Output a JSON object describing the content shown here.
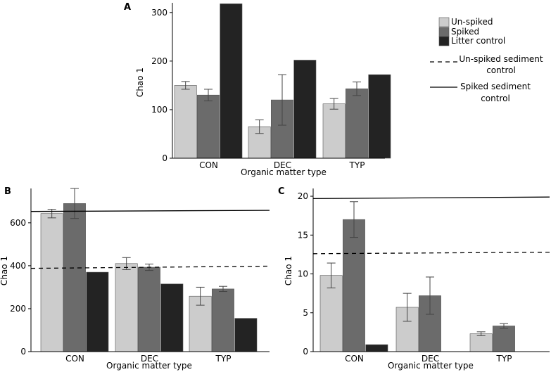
{
  "colors": {
    "unspiked": "#cccccc",
    "spiked": "#6b6b6b",
    "litter": "#232323",
    "errorbar": "#444444"
  },
  "legend": {
    "unspiked": "Un-spiked",
    "spiked": "Spiked",
    "litter": "Litter control",
    "unspiked_sed_line1": "Un-spiked sediment",
    "unspiked_sed_line2": "control",
    "spiked_sed_line1": "Spiked sediment",
    "spiked_sed_line2": "control"
  },
  "chart_data": [
    {
      "panel": "A",
      "type": "bar",
      "xlabel": "Organic matter type",
      "ylabel": "Chao 1",
      "ylim": [
        0,
        320
      ],
      "yticks": [
        0,
        100,
        200,
        300
      ],
      "categories": [
        "CON",
        "DEC",
        "TYP"
      ],
      "series": [
        {
          "name": "Un-spiked",
          "values": [
            150,
            65,
            112
          ],
          "errors": [
            8,
            14,
            11
          ]
        },
        {
          "name": "Spiked",
          "values": [
            130,
            120,
            143
          ],
          "errors": [
            12,
            52,
            14
          ]
        },
        {
          "name": "Litter control",
          "values": [
            318,
            202,
            172
          ],
          "errors": [
            null,
            null,
            null
          ]
        }
      ],
      "reference_lines": []
    },
    {
      "panel": "B",
      "type": "bar",
      "xlabel": "Organic matter type",
      "ylabel": "Chao 1",
      "ylim": [
        0,
        760
      ],
      "yticks": [
        0,
        200,
        400,
        600
      ],
      "categories": [
        "CON",
        "DEC",
        "TYP"
      ],
      "series": [
        {
          "name": "Un-spiked",
          "values": [
            643,
            410,
            258
          ],
          "errors": [
            20,
            28,
            42
          ]
        },
        {
          "name": "Spiked",
          "values": [
            690,
            393,
            292
          ],
          "errors": [
            70,
            15,
            12
          ]
        },
        {
          "name": "Litter control",
          "values": [
            370,
            315,
            155
          ],
          "errors": [
            null,
            null,
            null
          ]
        }
      ],
      "reference_lines": [
        {
          "name": "Spiked sediment control",
          "style": "solid",
          "start": 653,
          "end": 658
        },
        {
          "name": "Un-spiked sediment control",
          "style": "dashed",
          "start": 388,
          "end": 398
        }
      ]
    },
    {
      "panel": "C",
      "type": "bar",
      "xlabel": "Organic matter type",
      "ylabel": "Chao 1",
      "ylim": [
        0,
        21
      ],
      "yticks": [
        0,
        5,
        10,
        15,
        20
      ],
      "categories": [
        "CON",
        "DEC",
        "TYP"
      ],
      "series": [
        {
          "name": "Un-spiked",
          "values": [
            9.8,
            5.7,
            2.3
          ],
          "errors": [
            1.6,
            1.8,
            0.25
          ]
        },
        {
          "name": "Spiked",
          "values": [
            17.0,
            7.2,
            3.3
          ],
          "errors": [
            2.3,
            2.4,
            0.3
          ]
        },
        {
          "name": "Litter control",
          "values": [
            0.9,
            0,
            0
          ],
          "errors": [
            null,
            null,
            null
          ]
        }
      ],
      "reference_lines": [
        {
          "name": "Spiked sediment control",
          "style": "solid",
          "start": 19.7,
          "end": 19.9
        },
        {
          "name": "Un-spiked sediment control",
          "style": "dashed",
          "start": 12.6,
          "end": 12.8
        }
      ]
    }
  ]
}
